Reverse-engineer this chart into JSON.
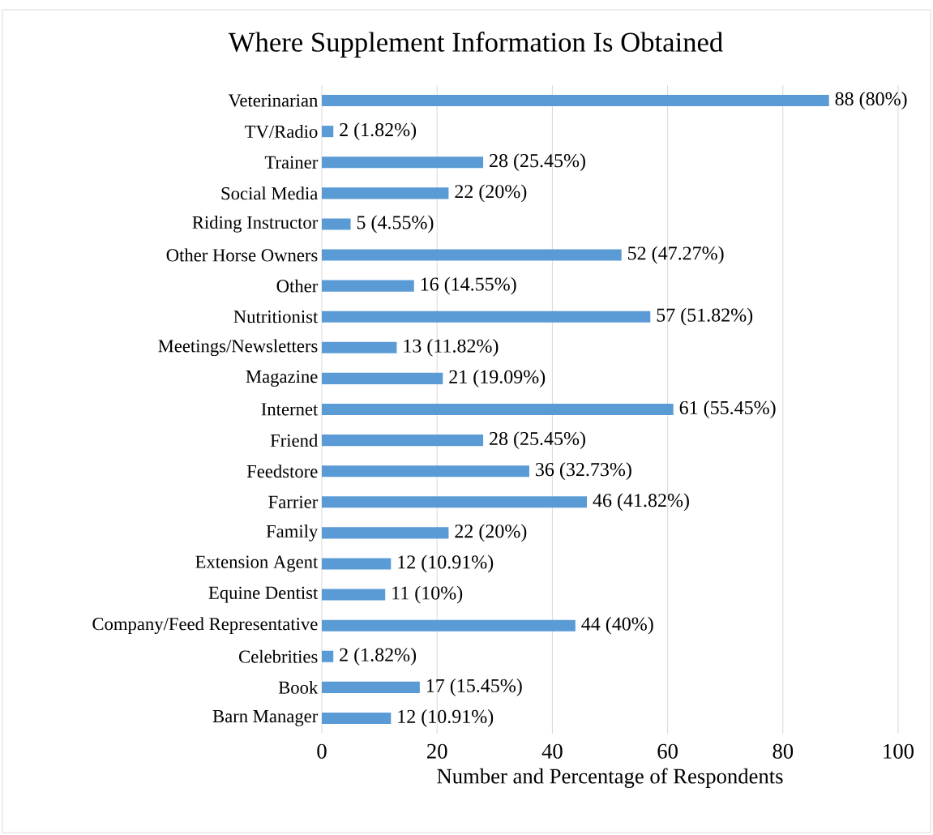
{
  "chart_data": {
    "type": "bar",
    "orientation": "horizontal",
    "title": "Where Supplement Information Is Obtained",
    "xlabel": "Number and Percentage of Respondents",
    "categories": [
      "Veterinarian",
      "TV/Radio",
      "Trainer",
      "Social Media",
      "Riding Instructor",
      "Other Horse Owners",
      "Other",
      "Nutritionist",
      "Meetings/Newsletters",
      "Magazine",
      "Internet",
      "Friend",
      "Feedstore",
      "Farrier",
      "Family",
      "Extension Agent",
      "Equine Dentist",
      "Company/Feed Representative",
      "Celebrities",
      "Book",
      "Barn Manager"
    ],
    "values": [
      88,
      2,
      28,
      22,
      5,
      52,
      16,
      57,
      13,
      21,
      61,
      28,
      36,
      46,
      22,
      12,
      11,
      44,
      2,
      17,
      12
    ],
    "value_labels": [
      "88 (80%)",
      "2 (1.82%)",
      "28 (25.45%)",
      "22 (20%)",
      "5 (4.55%)",
      "52 (47.27%)",
      "16 (14.55%)",
      "57 (51.82%)",
      "13 (11.82%)",
      "21 (19.09%)",
      "61 (55.45%)",
      "28 (25.45%)",
      "36 (32.73%)",
      "46 (41.82%)",
      "22 (20%)",
      "12 (10.91%)",
      "11 (10%)",
      "44 (40%)",
      "2 (1.82%)",
      "17 (15.45%)",
      "12 (10.91%)"
    ],
    "color": "#5b9bd5",
    "xlim": [
      0,
      100
    ],
    "xticks": [
      0,
      20,
      40,
      60,
      80,
      100
    ],
    "grid": "x"
  }
}
